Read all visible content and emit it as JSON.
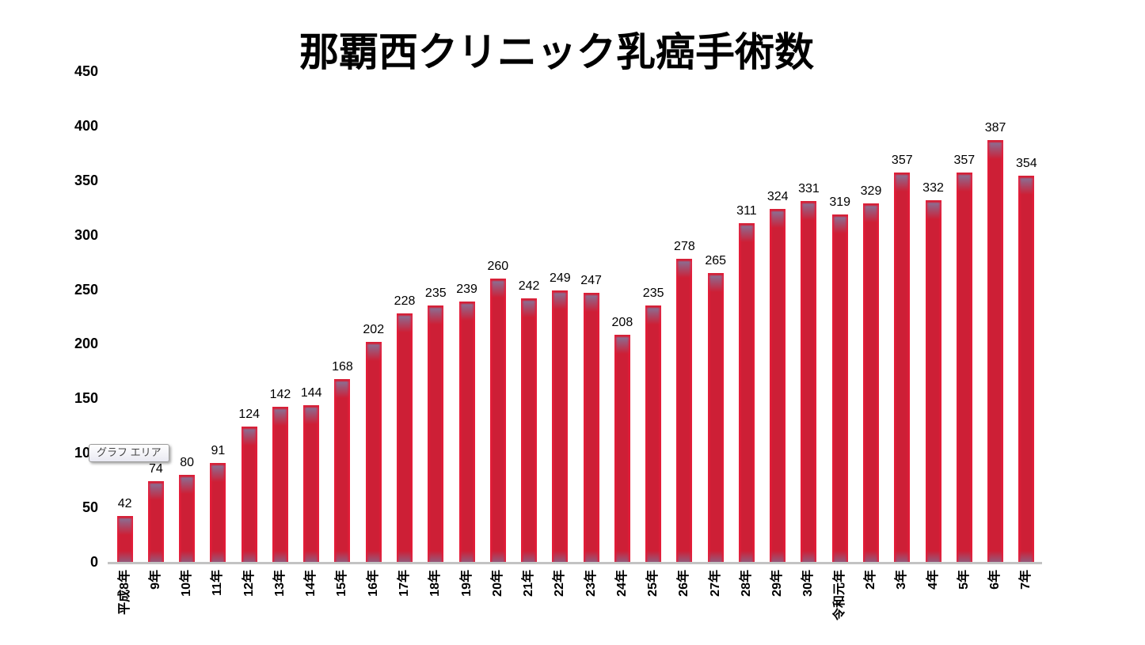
{
  "tooltip": {
    "label": "グラフ エリア"
  },
  "chart_data": {
    "type": "bar",
    "title": "那覇西クリニック乳癌手術数",
    "categories": [
      "平成8年",
      "9年",
      "10年",
      "11年",
      "12年",
      "13年",
      "14年",
      "15年",
      "16年",
      "17年",
      "18年",
      "19年",
      "20年",
      "21年",
      "22年",
      "23年",
      "24年",
      "25年",
      "26年",
      "27年",
      "28年",
      "29年",
      "30年",
      "令和元年",
      "2年",
      "3年",
      "4年",
      "5年",
      "6年",
      "7年"
    ],
    "values": [
      42,
      74,
      80,
      91,
      124,
      142,
      144,
      168,
      202,
      228,
      235,
      239,
      260,
      242,
      249,
      247,
      208,
      235,
      278,
      265,
      311,
      324,
      331,
      319,
      329,
      357,
      332,
      357,
      387,
      354
    ],
    "xlabel": "",
    "ylabel": "",
    "ylim": [
      0,
      450
    ],
    "ytick_step": 50,
    "grid": false,
    "legend": "none",
    "data_labels": "above-bars",
    "x_label_rotation_deg": 90,
    "bar_color": "#cd1f36",
    "bar_edge_color": "#ea1b38",
    "bar_top_shade_color": "#8d6b8f",
    "axis_line_color": "#c3c3c3"
  }
}
